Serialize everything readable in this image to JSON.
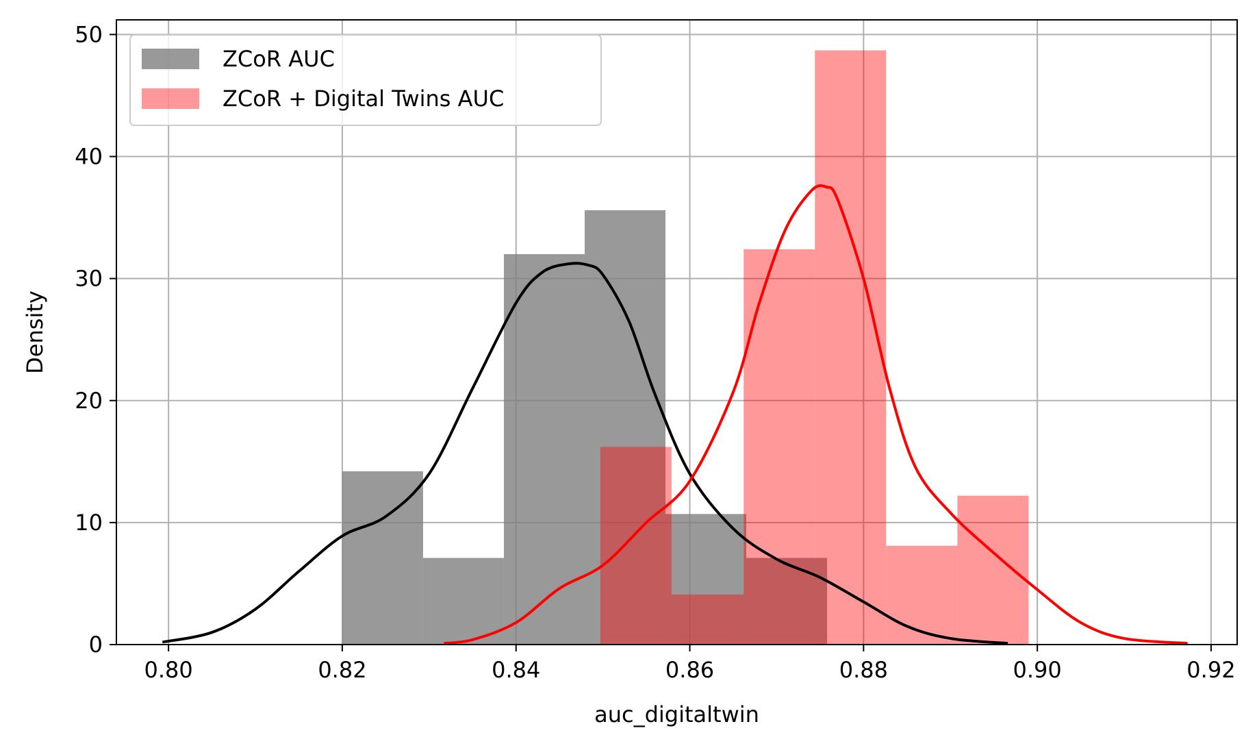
{
  "chart_data": {
    "type": "bar",
    "xlabel": "auc_digitaltwin",
    "ylabel": "Density",
    "xlim": [
      0.794,
      0.923
    ],
    "ylim": [
      0,
      51.2
    ],
    "xticks": [
      {
        "value": 0.8,
        "label": "0.80"
      },
      {
        "value": 0.82,
        "label": "0.82"
      },
      {
        "value": 0.84,
        "label": "0.84"
      },
      {
        "value": 0.86,
        "label": "0.86"
      },
      {
        "value": 0.88,
        "label": "0.88"
      },
      {
        "value": 0.9,
        "label": "0.90"
      },
      {
        "value": 0.92,
        "label": "0.92"
      }
    ],
    "yticks": [
      {
        "value": 0,
        "label": "0"
      },
      {
        "value": 10,
        "label": "10"
      },
      {
        "value": 20,
        "label": "20"
      },
      {
        "value": 30,
        "label": "30"
      },
      {
        "value": 40,
        "label": "40"
      },
      {
        "value": 50,
        "label": "50"
      }
    ],
    "grid": true,
    "legend_position": "top-left",
    "series": [
      {
        "name": "ZCoR AUC",
        "kind": "histogram",
        "color": "#808080",
        "opacity": 0.8,
        "bins": [
          {
            "x0": 0.82,
            "x1": 0.8293,
            "density": 14.2
          },
          {
            "x0": 0.8293,
            "x1": 0.8386,
            "density": 7.1
          },
          {
            "x0": 0.8386,
            "x1": 0.8479,
            "density": 32.0
          },
          {
            "x0": 0.8479,
            "x1": 0.8572,
            "density": 35.6
          },
          {
            "x0": 0.8572,
            "x1": 0.8665,
            "density": 10.7
          },
          {
            "x0": 0.8665,
            "x1": 0.8758,
            "density": 7.1
          }
        ]
      },
      {
        "name": "ZCoR + Digital Twins AUC",
        "kind": "histogram",
        "color": "#ff0000",
        "opacity": 0.4,
        "bins": [
          {
            "x0": 0.8497,
            "x1": 0.8579,
            "density": 16.2
          },
          {
            "x0": 0.8579,
            "x1": 0.8662,
            "density": 4.1
          },
          {
            "x0": 0.8662,
            "x1": 0.8744,
            "density": 32.4
          },
          {
            "x0": 0.8744,
            "x1": 0.8826,
            "density": 48.7
          },
          {
            "x0": 0.8826,
            "x1": 0.8908,
            "density": 8.1
          },
          {
            "x0": 0.8908,
            "x1": 0.899,
            "density": 12.2
          }
        ]
      }
    ],
    "kde": [
      {
        "series": "ZCoR AUC",
        "color": "#000000",
        "x": [
          0.7993,
          0.805,
          0.81,
          0.815,
          0.82,
          0.825,
          0.83,
          0.835,
          0.84,
          0.843,
          0.846,
          0.8483,
          0.85,
          0.853,
          0.856,
          0.86,
          0.865,
          0.87,
          0.875,
          0.88,
          0.885,
          0.89,
          0.8966
        ],
        "y": [
          0.2,
          1.0,
          2.9,
          6.0,
          8.9,
          10.5,
          14.0,
          21.0,
          28.0,
          30.5,
          31.2,
          31.1,
          30.3,
          26.5,
          20.5,
          14.0,
          9.5,
          7.0,
          5.5,
          3.5,
          1.5,
          0.5,
          0.1
        ]
      },
      {
        "series": "ZCoR + Digital Twins AUC",
        "color": "#ff0000",
        "x": [
          0.8317,
          0.835,
          0.84,
          0.845,
          0.85,
          0.855,
          0.86,
          0.865,
          0.868,
          0.871,
          0.874,
          0.8757,
          0.877,
          0.88,
          0.883,
          0.886,
          0.89,
          0.895,
          0.9,
          0.905,
          0.91,
          0.9173
        ],
        "y": [
          0.1,
          0.4,
          1.8,
          4.6,
          6.5,
          10.0,
          13.4,
          20.7,
          28.0,
          34.0,
          37.2,
          37.5,
          36.5,
          30.0,
          21.0,
          14.5,
          10.8,
          7.5,
          4.5,
          1.8,
          0.5,
          0.1
        ]
      }
    ]
  }
}
